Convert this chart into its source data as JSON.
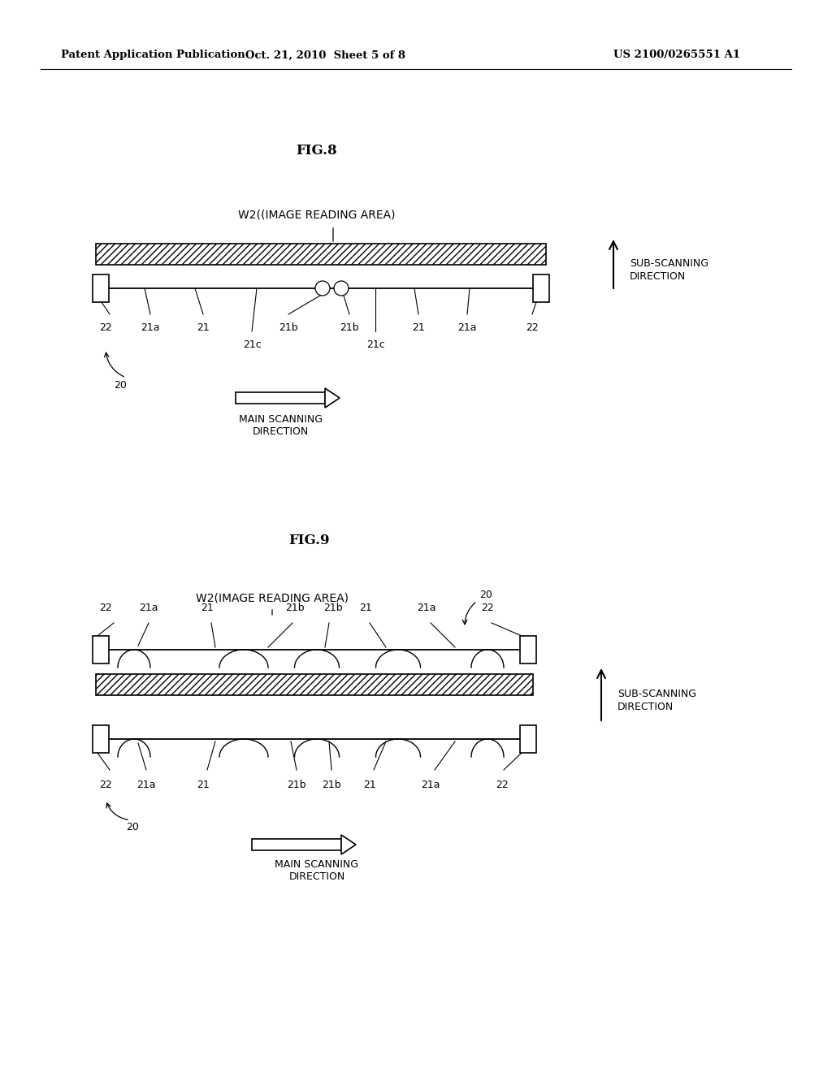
{
  "background_color": "#ffffff",
  "text_color": "#000000",
  "header_left": "Patent Application Publication",
  "header_mid": "Oct. 21, 2010  Sheet 5 of 8",
  "header_right": "US 2100/0265551 A1",
  "fig8_title": "FIG.8",
  "fig9_title": "FIG.9",
  "w2_label_fig8": "W2((IMAGE READING AREA)",
  "w2_label_fig9": "W2(IMAGE READING AREA)",
  "sub_scanning_line1": "SUB-SCANNING",
  "sub_scanning_line2": "DIRECTION",
  "main_scanning_line1": "MAIN SCANNING",
  "main_scanning_line2": "DIRECTION"
}
